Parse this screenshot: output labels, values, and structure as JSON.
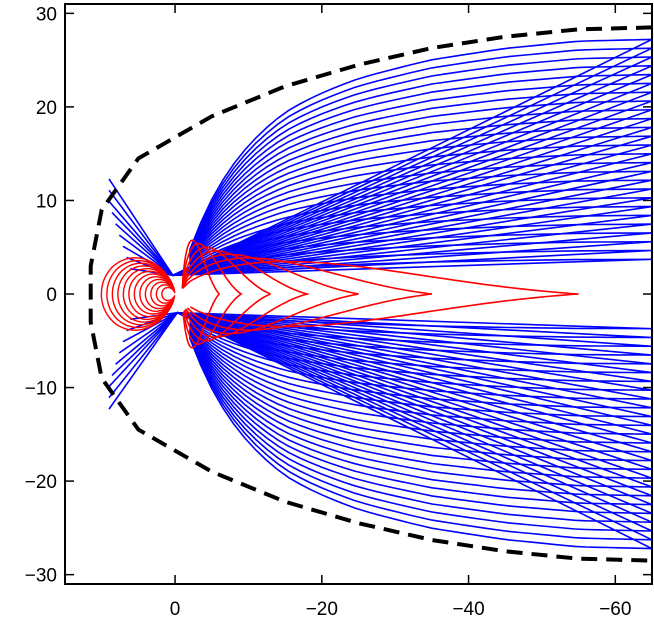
{
  "chart_data": {
    "type": "line",
    "title": "",
    "xlabel": "",
    "ylabel": "",
    "xlim": [
      15,
      -65
    ],
    "ylim": [
      -31,
      31
    ],
    "x_ticks": [
      0,
      -20,
      -40,
      -60
    ],
    "x_tick_labels": [
      "0",
      "−20",
      "−40",
      "−60"
    ],
    "y_ticks": [
      -30,
      -20,
      -10,
      0,
      10,
      20,
      30
    ],
    "y_tick_labels": [
      "−30",
      "−20",
      "−10",
      "0",
      "10",
      "20",
      "30"
    ],
    "grid": false,
    "legend": "none",
    "colors": {
      "open_field_lines": "#0000ff",
      "closed_field_lines": "#ff0000",
      "boundary": "#000000",
      "axes": "#000000"
    },
    "series": [
      {
        "kind": "boundary-dashed",
        "points": [
          [
            -65,
            28.5
          ],
          [
            -55,
            28.3
          ],
          [
            -45,
            27.5
          ],
          [
            -35,
            26.3
          ],
          [
            -25,
            24.5
          ],
          [
            -15,
            22.2
          ],
          [
            -5,
            19.0
          ],
          [
            5,
            14.5
          ],
          [
            10,
            9.0
          ],
          [
            11.5,
            3.0
          ],
          [
            11.5,
            -3.0
          ],
          [
            10,
            -9.0
          ],
          [
            5,
            -14.5
          ],
          [
            -5,
            -19.0
          ],
          [
            -15,
            -22.2
          ],
          [
            -25,
            -24.5
          ],
          [
            -35,
            -26.3
          ],
          [
            -45,
            -27.5
          ],
          [
            -55,
            -28.3
          ],
          [
            -65,
            -28.5
          ]
        ]
      }
    ]
  }
}
